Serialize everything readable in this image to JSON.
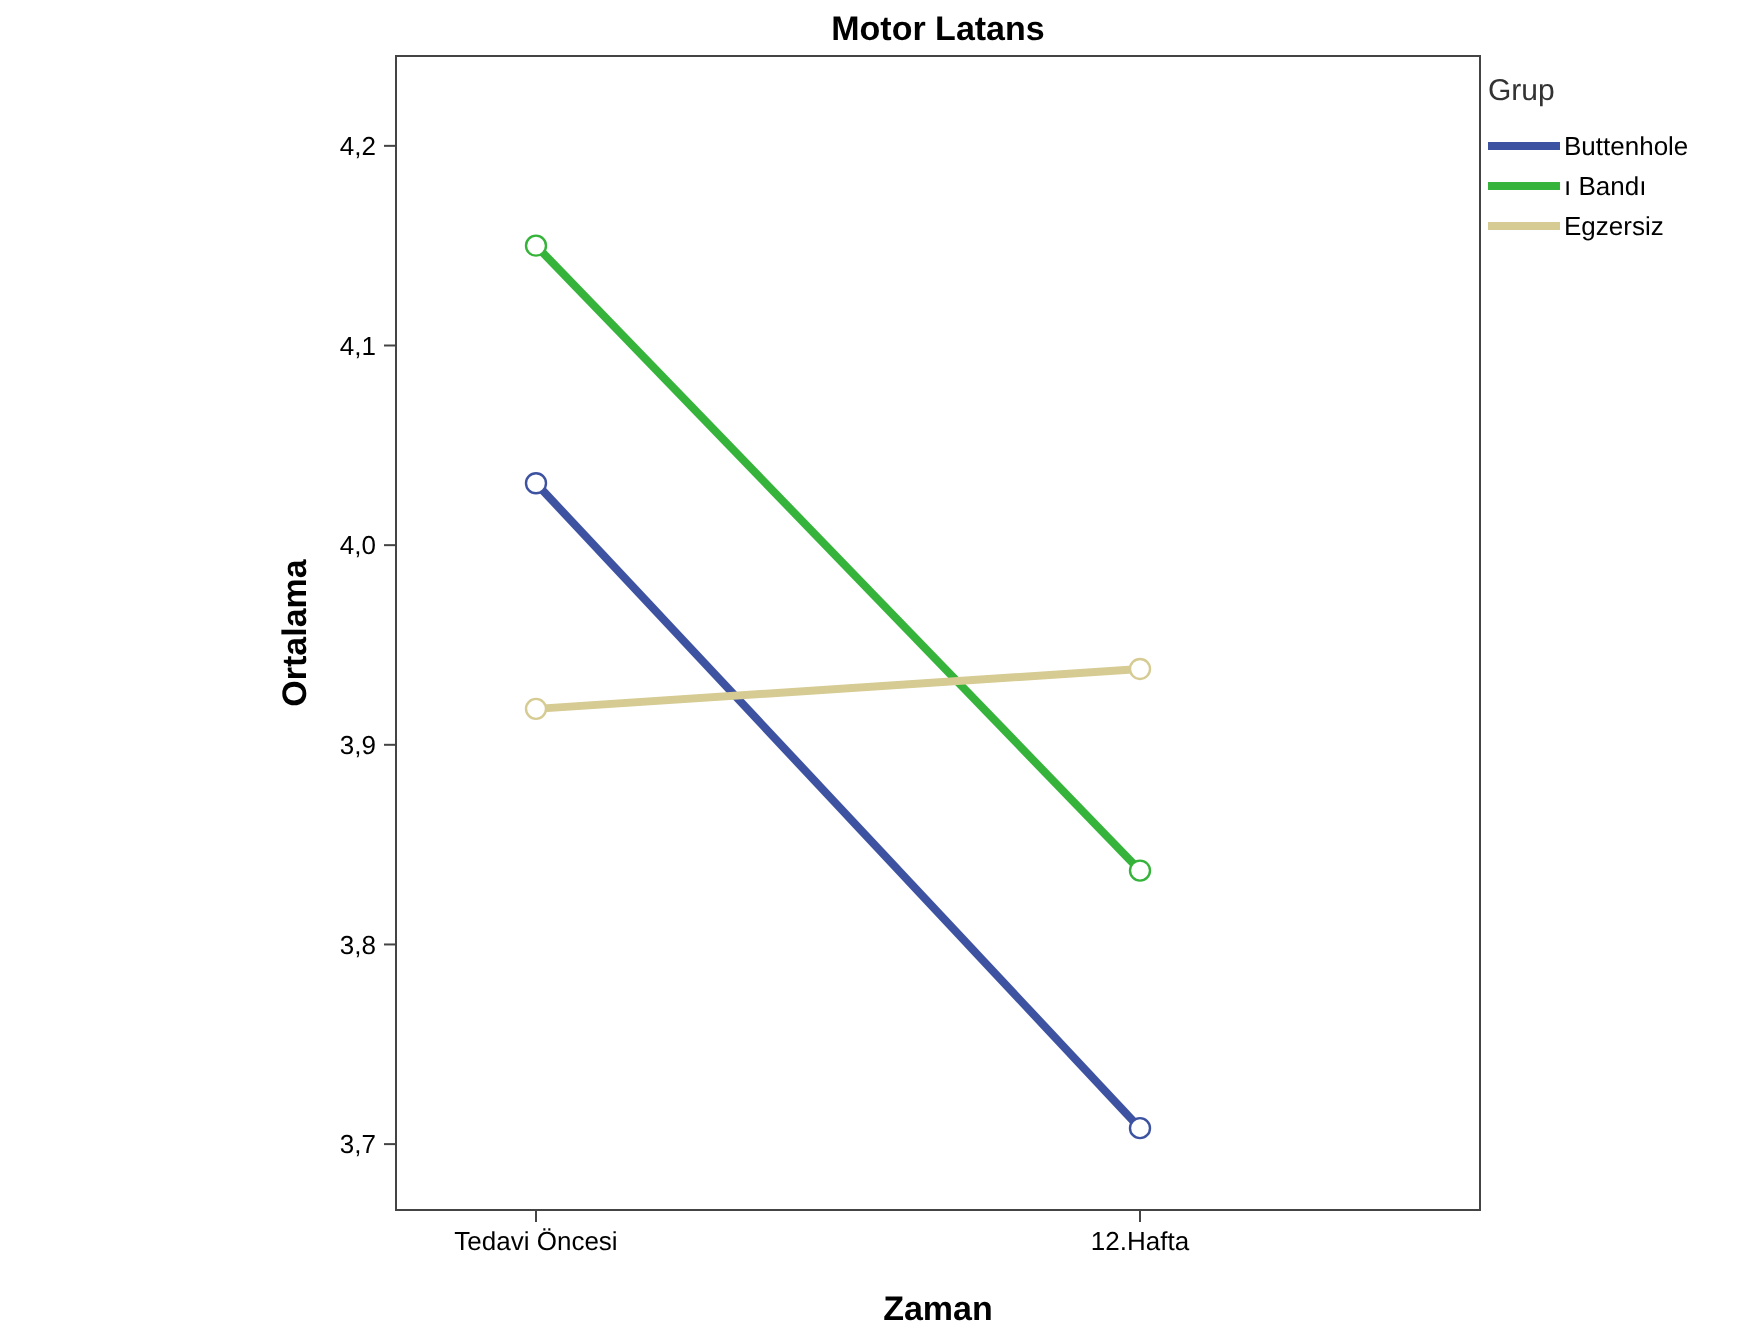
{
  "chart_data": {
    "type": "line",
    "title": "Motor Latans",
    "xlabel": "Zaman",
    "ylabel": "Ortalama",
    "legend_title": "Grup",
    "categories": [
      "Tedavi Öncesi",
      "12.Hafta"
    ],
    "ylim": [
      3.667,
      4.245
    ],
    "yticks": [
      {
        "value": 3.7,
        "label": "3,7"
      },
      {
        "value": 3.8,
        "label": "3,8"
      },
      {
        "value": 3.9,
        "label": "3,9"
      },
      {
        "value": 4.0,
        "label": "4,0"
      },
      {
        "value": 4.1,
        "label": "4,1"
      },
      {
        "value": 4.2,
        "label": "4,2"
      }
    ],
    "legend": "top right",
    "marker": "circle",
    "line_style": "solid",
    "grid": false,
    "series": [
      {
        "name": "Buttenhole",
        "color": "#3d52a1",
        "values": [
          4.031,
          3.708
        ]
      },
      {
        "name": "ı Bandı",
        "color": "#36b33a",
        "values": [
          4.15,
          3.837
        ]
      },
      {
        "name": "Egzersiz",
        "color": "#d6cb92",
        "values": [
          3.918,
          3.938
        ]
      }
    ]
  }
}
